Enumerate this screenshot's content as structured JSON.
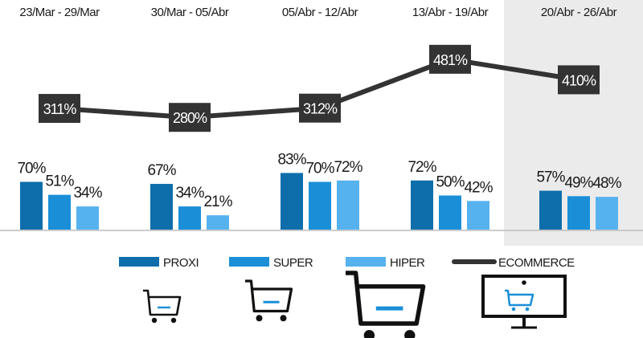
{
  "chart_data": {
    "type": "bar",
    "categories": [
      "23/Mar - 29/Mar",
      "30/Mar - 05/Abr",
      "05/Abr - 12/Abr",
      "13/Abr - 19/Abr",
      "20/Abr - 26/Abr"
    ],
    "highlighted_category": "20/Abr - 26/Abr",
    "series": [
      {
        "name": "PROXI",
        "type": "bar",
        "color": "#0d6eab",
        "values": [
          70,
          67,
          83,
          72,
          57
        ],
        "labels": [
          "70%",
          "67%",
          "83%",
          "72%",
          "57%"
        ]
      },
      {
        "name": "SUPER",
        "type": "bar",
        "color": "#1a8fd8",
        "values": [
          51,
          34,
          70,
          50,
          49
        ],
        "labels": [
          "51%",
          "34%",
          "70%",
          "50%",
          "49%"
        ]
      },
      {
        "name": "HIPER",
        "type": "bar",
        "color": "#56b2ef",
        "values": [
          34,
          21,
          72,
          42,
          48
        ],
        "labels": [
          "34%",
          "21%",
          "72%",
          "42%",
          "48%"
        ]
      },
      {
        "name": "ECOMMERCE",
        "type": "line",
        "color": "#333333",
        "values": [
          311,
          280,
          312,
          481,
          410
        ],
        "labels": [
          "311%",
          "280%",
          "312%",
          "481%",
          "410%"
        ]
      }
    ],
    "legend_position": "bottom",
    "grid": false
  },
  "legend": {
    "items": [
      {
        "label": "PROXI",
        "color": "#0d6eab",
        "icon": "cart-small-icon"
      },
      {
        "label": "SUPER",
        "color": "#1a8fd8",
        "icon": "cart-medium-icon"
      },
      {
        "label": "HIPER",
        "color": "#56b2ef",
        "icon": "cart-large-icon"
      },
      {
        "label": "ECOMMERCE",
        "color": "#333333",
        "icon": "monitor-cart-icon"
      }
    ]
  },
  "colors": {
    "highlight_band": "#ebebeb",
    "baseline": "#bbbbbb",
    "icon_stroke": "#111111",
    "icon_accent": "#1a8fd8"
  }
}
